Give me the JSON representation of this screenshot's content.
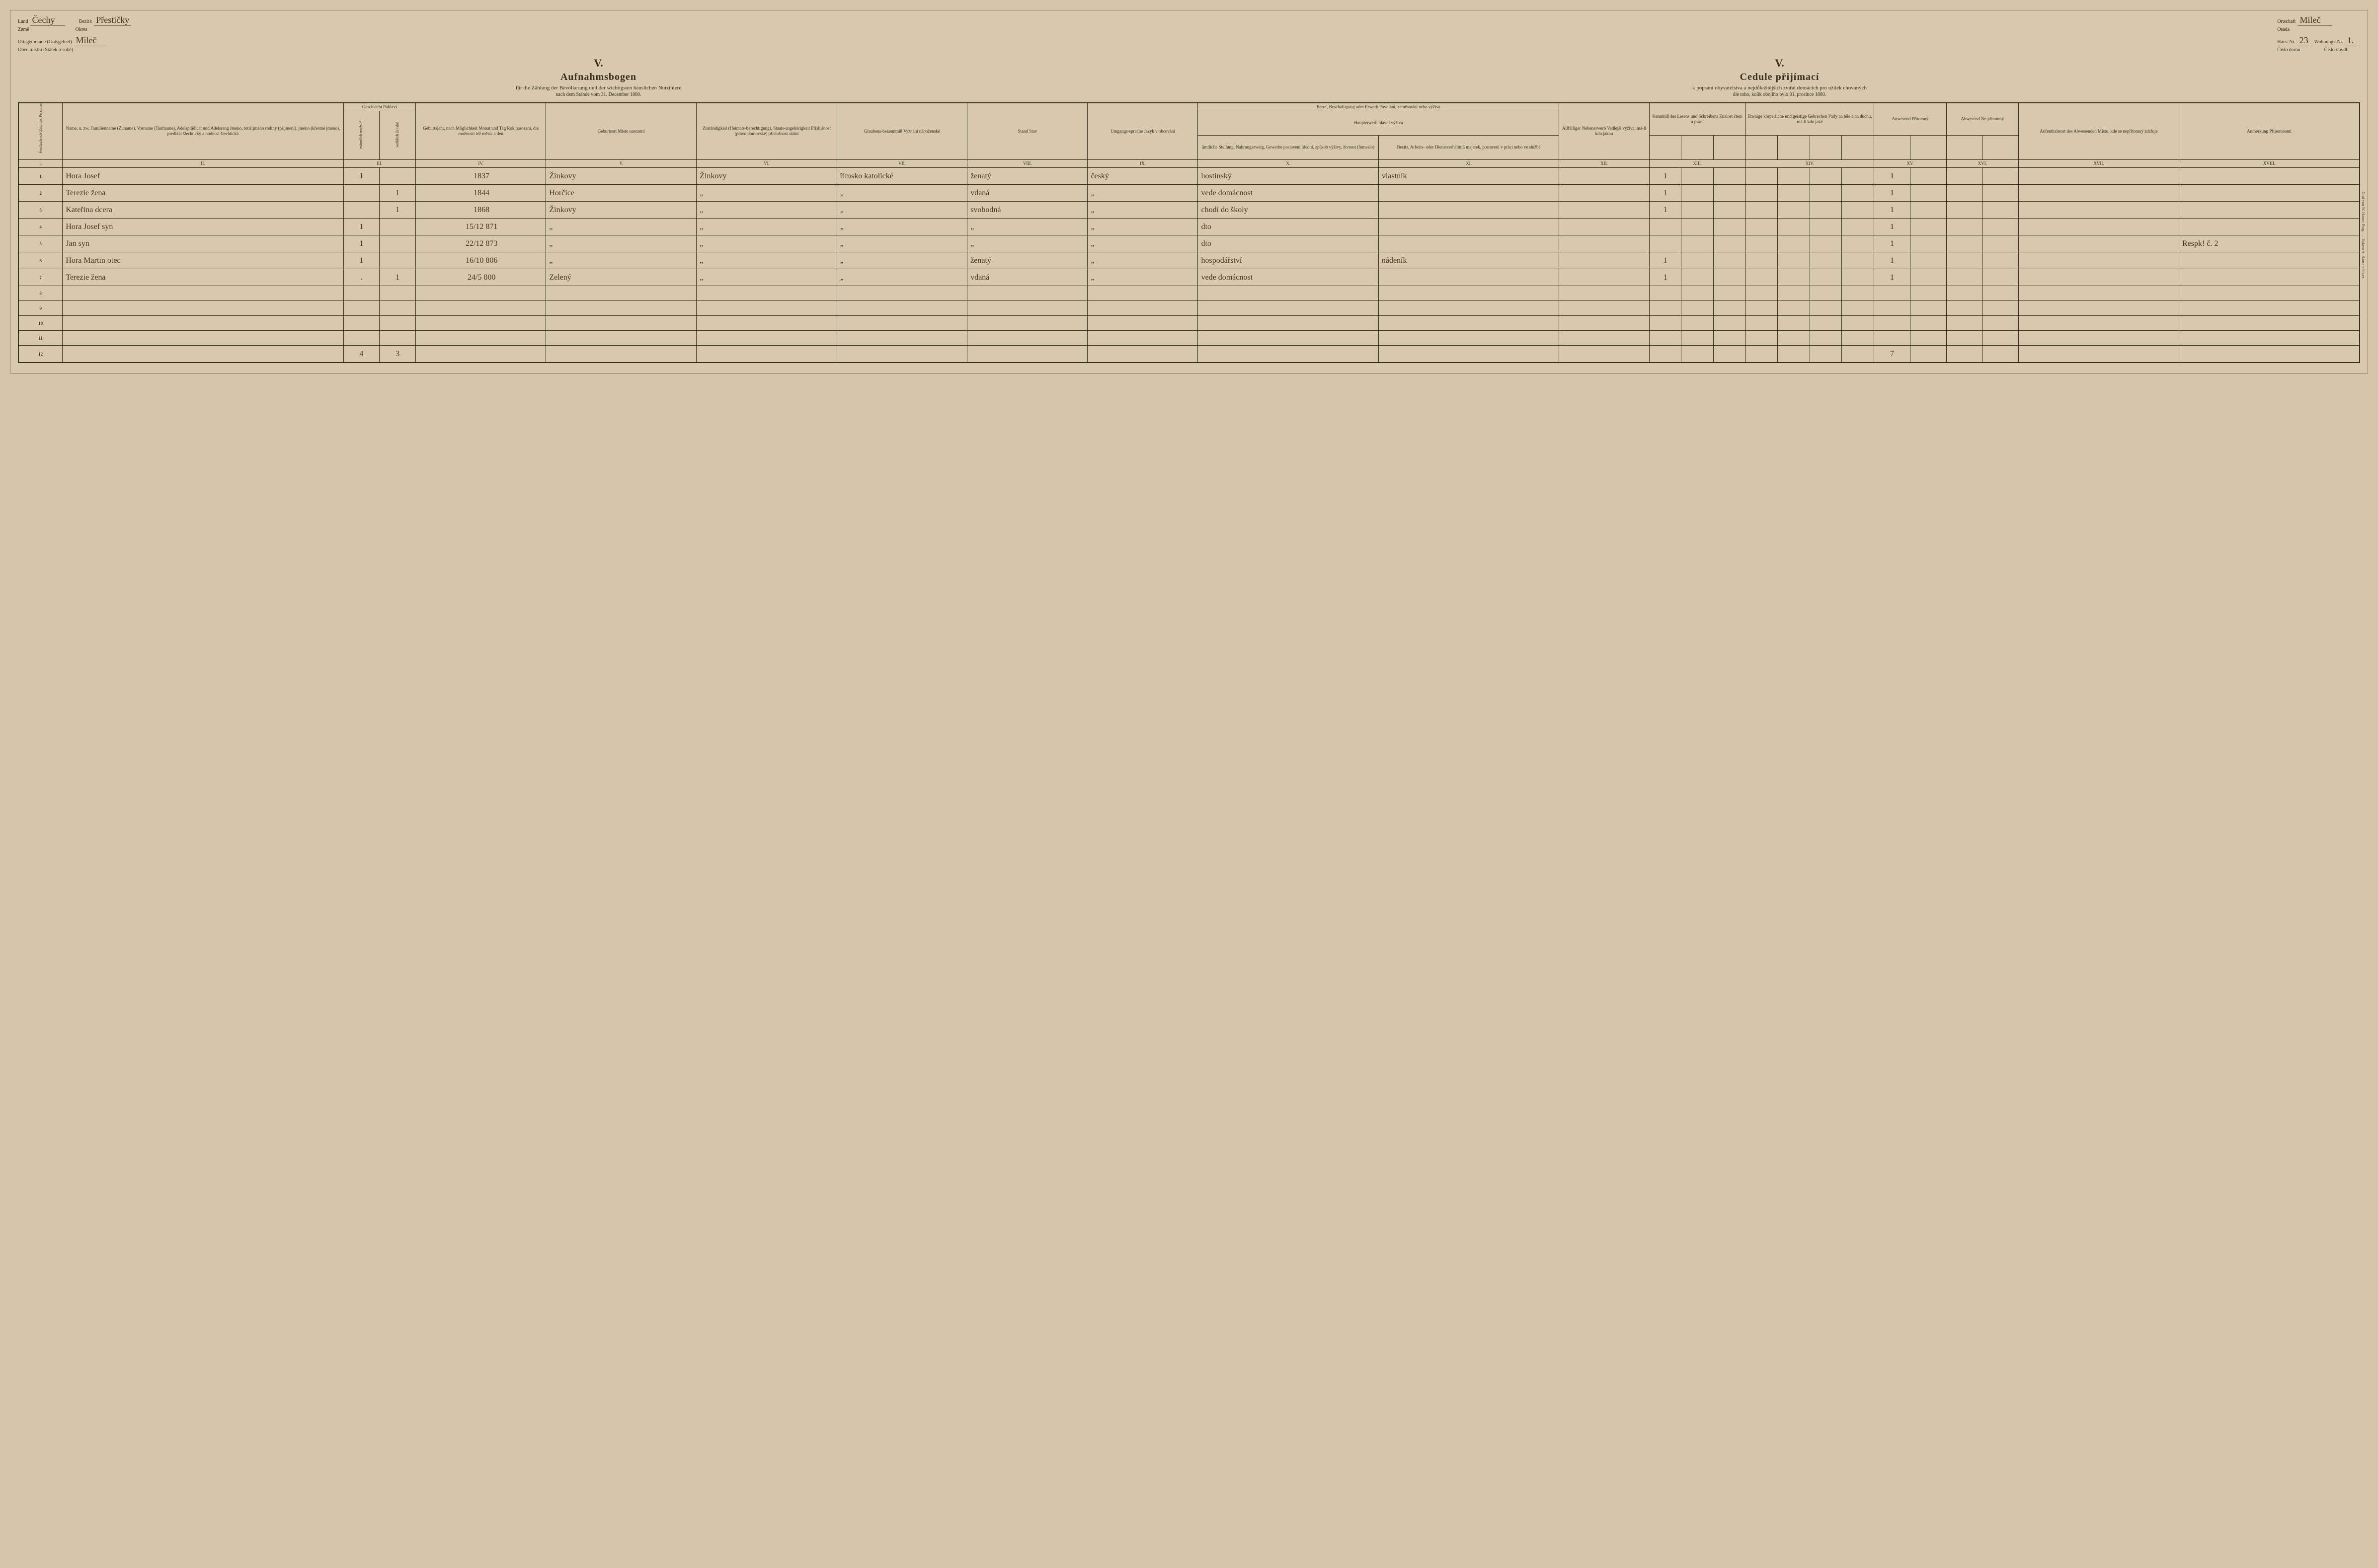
{
  "header": {
    "left": {
      "land_label_de": "Land",
      "land_label_cz": "Země",
      "land_value": "Čechy",
      "bezirk_label_de": "Bezirk",
      "bezirk_label_cz": "Okres",
      "bezirk_value": "Přestičky",
      "ort_label_de": "Ortsgemeinde (Gutsgebiet)",
      "ort_label_cz": "Obec místní (Statek o sobě)",
      "ort_value": "Mileč"
    },
    "right": {
      "ortschaft_label_de": "Ortschaft",
      "ortschaft_label_cz": "Osada",
      "ortschaft_value": "Mileč",
      "haus_label_de": "Haus-Nr.",
      "haus_label_cz": "Číslo domu",
      "haus_value": "23",
      "wohn_label_de": "Wohnungs-Nr.",
      "wohn_label_cz": "Číslo obydlí",
      "wohn_value": "1."
    }
  },
  "titles": {
    "roman": "V.",
    "de_main": "Aufnahmsbogen",
    "de_sub": "für die Zählung der Bevölkerung und der wichtigsten häuslichen Nutzthiere",
    "de_sub2": "nach dem Stande vom 31. December 1880.",
    "cz_main": "Cedule přijímací",
    "cz_sub": "k popsání obyvatelstva a nejdůležitějších zvířat domácích pro užitek chovaných",
    "cz_sub2": "dle toho, kolik obojího bylo 31. prosince 1880."
  },
  "columns": {
    "c1": "Fortlaufende Zahl der Personen\nPořadí jednotl. číslo osob",
    "c2": "Name,\nu. zw. Familienname (Zuname), Vorname (Taufname), Adelsprädicat und Adelsrang\nJméno,\ntotiž jméno rodiny (příjmení), jméno (křestné jméno), predikát šlechtický a hodnost šlechtická",
    "c3": "Geschlecht\nPohlaví",
    "c3a": "männlich\nmužské",
    "c3b": "weiblich\nženské",
    "c4": "Geburtsjahr,\nnach Möglichkeit Monat und Tag\nRok narození,\ndle možnosti též měsíc a den",
    "c5": "Geburtsort\nMísto narození",
    "c6": "Zuständigkeit (Heimats-berechtigung), Staats-angehörigkeit\nPříslušnost (právo domovské) příslušnost státní",
    "c7": "Glaubens-bekenntniß\nVyznání náboženské",
    "c8": "Stand\nStav",
    "c9": "Umgangs-sprache\nJazyk v obcování",
    "c10_11_top": "Beruf, Beschäftigung oder Erwerb\nPovolání, zaměstnání nebo výživa",
    "c10_11_mid": "Haupterwerb\nhlavní výživa",
    "c10": "ämtliche Stellung, Nahrungszweig, Gewerbe\npostavení úřední, způsob výživy, živnost (řemeslo)",
    "c11": "Besitz, Arbeits- oder Dienstverhältniß\nmajetek, postavení v práci nebo ve službě",
    "c12": "Allfälliger Nebenerwerb\nVedlejší výživa, má-li kdo jakou",
    "c13_top": "Kenntniß des Lesens und Schreibens\nZnalost čtení a psaní",
    "c14_top": "Etwaige körperliche und geistige Gebrechen\nVady na těle a na duchu, má-li kdo jaké",
    "c15": "Anwesend\nPřítomný",
    "c16": "Abwesend\nNe-přítomný",
    "c17": "Aufenthaltsort des Abwesenden\nMísto, kde se nepřítomný zdržuje",
    "c18": "Anmerkung\nPřipomenutí",
    "nums": [
      "I.",
      "II.",
      "III.",
      "IV.",
      "V.",
      "VI.",
      "VII.",
      "VIII.",
      "IX.",
      "X.",
      "XI.",
      "XII.",
      "XIII.",
      "XIV.",
      "XV.",
      "XVI.",
      "XVII.",
      "XVIII."
    ]
  },
  "rows": [
    {
      "n": "1",
      "name": "Hora Josef",
      "male": "1",
      "female": "",
      "birth": "1837",
      "place": "Žinkovy",
      "zust": "Žinkovy",
      "relig": "římsko katolické",
      "stand": "ženatý",
      "lang": "český",
      "occ": "hostinský",
      "pos": "vlastník",
      "read": "1",
      "pres": "1",
      "note": ""
    },
    {
      "n": "2",
      "name": "Terezie žena",
      "male": "",
      "female": "1",
      "birth": "1844",
      "place": "Horčice",
      "zust": "„",
      "relig": "„",
      "stand": "vdaná",
      "lang": "„",
      "occ": "vede domácnost",
      "pos": "",
      "read": "1",
      "pres": "1",
      "note": ""
    },
    {
      "n": "3",
      "name": "Kateřina dcera",
      "male": "",
      "female": "1",
      "birth": "1868",
      "place": "Žinkovy",
      "zust": "„",
      "relig": "„",
      "stand": "svobodná",
      "lang": "„",
      "occ": "chodí do školy",
      "pos": "",
      "read": "1",
      "pres": "1",
      "note": ""
    },
    {
      "n": "4",
      "name": "Hora Josef syn",
      "male": "1",
      "female": "",
      "birth": "15/12 871",
      "place": "„",
      "zust": "„",
      "relig": "„",
      "stand": "„",
      "lang": "„",
      "occ": "dto",
      "pos": "",
      "read": "",
      "pres": "1",
      "note": ""
    },
    {
      "n": "5",
      "name": "Jan syn",
      "male": "1",
      "female": "",
      "birth": "22/12 873",
      "place": "„",
      "zust": "„",
      "relig": "„",
      "stand": "„",
      "lang": "„",
      "occ": "dto",
      "pos": "",
      "read": "",
      "pres": "1",
      "note": "Respk! č. 2"
    },
    {
      "n": "6",
      "name": "Hora Martin otec",
      "male": "1",
      "female": "",
      "birth": "16/10 806",
      "place": "„",
      "zust": "„",
      "relig": "„",
      "stand": "ženatý",
      "lang": "„",
      "occ": "hospodářství",
      "pos": "nádeník",
      "read": "1",
      "pres": "1",
      "note": ""
    },
    {
      "n": "7",
      "name": "Terezie žena",
      "male": ".",
      "female": "1",
      "birth": "24/5 800",
      "place": "Zelený",
      "zust": "„",
      "relig": "„",
      "stand": "vdaná",
      "lang": "„",
      "occ": "vede domácnost",
      "pos": "",
      "read": "1",
      "pres": "1",
      "note": ""
    }
  ],
  "empty_rows": [
    "8",
    "9",
    "10",
    "11"
  ],
  "totals": {
    "row": "12",
    "male": "4",
    "female": "3",
    "pres": "7"
  },
  "printer": "Graf von W. Haase, Prag. — Tiskem A. Haase v Praze."
}
